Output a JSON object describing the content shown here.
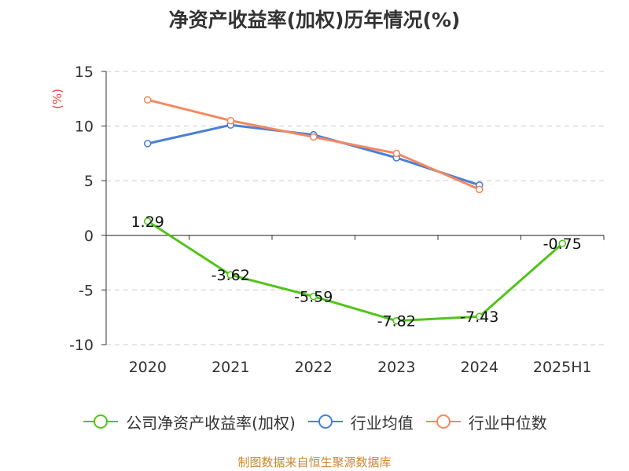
{
  "title": "净资产收益率(加权)历年情况(%)",
  "source": "制图数据来自恒生聚源数据库",
  "chart_data": {
    "type": "line",
    "title": "净资产收益率(加权)历年情况(%)",
    "xlabel": "",
    "ylabel": "(%)",
    "ylim": [
      -10,
      15
    ],
    "yticks": [
      15,
      10,
      5,
      0,
      -5,
      -10
    ],
    "categories": [
      "2020",
      "2021",
      "2022",
      "2023",
      "2024",
      "2025H1"
    ],
    "grid": true,
    "legend_position": "bottom",
    "series": [
      {
        "name": "公司净资产收益率(加权)",
        "color": "#52c41a",
        "values": [
          1.29,
          -3.62,
          -5.59,
          -7.82,
          -7.43,
          -0.75
        ],
        "labels": [
          "1.29",
          "-3.62",
          "-5.59",
          "-7.82",
          "-7.43",
          "-0.75"
        ]
      },
      {
        "name": "行业均值",
        "color": "#4a7fd8",
        "values": [
          8.4,
          10.1,
          9.2,
          7.1,
          4.6,
          null
        ]
      },
      {
        "name": "行业中位数",
        "color": "#f4895f",
        "values": [
          12.4,
          10.5,
          9.0,
          7.5,
          4.2,
          null
        ]
      }
    ]
  }
}
